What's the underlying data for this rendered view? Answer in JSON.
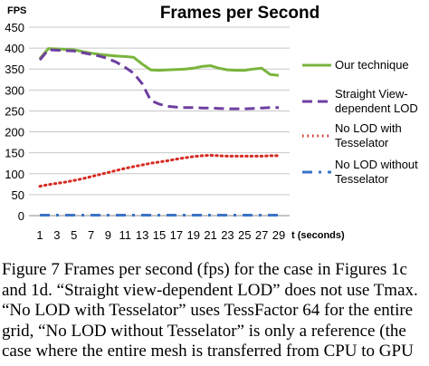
{
  "chart_data": {
    "type": "line",
    "title": "Frames per Second",
    "ylabel": "FPS",
    "xlabel": "t (seconds)",
    "ylim": [
      0,
      450
    ],
    "yticks": [
      0,
      50,
      100,
      150,
      200,
      250,
      300,
      350,
      400,
      450
    ],
    "xlim": [
      1,
      29
    ],
    "xticks": [
      1,
      3,
      5,
      7,
      9,
      11,
      13,
      15,
      17,
      19,
      21,
      23,
      25,
      27,
      29
    ],
    "grid": "horizontal",
    "legend_position": "right",
    "x": [
      1,
      2,
      3,
      4,
      5,
      6,
      7,
      8,
      9,
      10,
      11,
      12,
      13,
      14,
      15,
      16,
      17,
      18,
      19,
      20,
      21,
      22,
      23,
      24,
      25,
      26,
      27,
      28,
      29
    ],
    "series": [
      {
        "name": "Our technique",
        "color": "#79b43c",
        "style": "solid",
        "values": [
          375,
          399,
          398,
          397,
          396,
          392,
          388,
          385,
          383,
          381,
          380,
          378,
          362,
          348,
          347,
          348,
          349,
          350,
          352,
          356,
          358,
          352,
          348,
          347,
          347,
          350,
          352,
          337,
          335
        ]
      },
      {
        "name": "Straight View-dependent LOD",
        "color": "#6d3fa0",
        "style": "dash",
        "values": [
          372,
          396,
          395,
          394,
          393,
          389,
          385,
          381,
          375,
          366,
          354,
          340,
          315,
          275,
          266,
          261,
          259,
          258,
          258,
          257,
          257,
          256,
          255,
          255,
          255,
          256,
          257,
          258,
          258
        ]
      },
      {
        "name": "No LOD with Tesselator",
        "color": "#d62a22",
        "style": "dot",
        "values": [
          70,
          74,
          77,
          80,
          84,
          88,
          93,
          98,
          103,
          108,
          113,
          117,
          121,
          125,
          128,
          131,
          135,
          138,
          141,
          143,
          144,
          143,
          142,
          142,
          142,
          142,
          142,
          143,
          143
        ]
      },
      {
        "name": "No LOD without Tesselator",
        "color": "#3b73c8",
        "style": "dashdot",
        "values": [
          1,
          1,
          1,
          1,
          1,
          1,
          1,
          1,
          1,
          1,
          1,
          1,
          1,
          1,
          1,
          1,
          1,
          1,
          1,
          1,
          1,
          1,
          1,
          1,
          1,
          1,
          1,
          1,
          1
        ]
      }
    ]
  },
  "legend_lines": [
    [
      "Our technique"
    ],
    [
      "Straight View-",
      "dependent LOD"
    ],
    [
      "No LOD with",
      "Tesselator"
    ],
    [
      "No LOD without",
      "Tesselator"
    ]
  ],
  "caption": {
    "line1": "Figure 7 Frames per second (fps) for the case in Figures 1c",
    "line2": "and 1d. “Straight view-dependent LOD” does not use Tmax.",
    "line3": "“No LOD with Tesselator” uses TessFactor 64 for the entire",
    "line4": "grid, “No LOD without Tesselator” is only a reference (the",
    "line5": "case where the entire mesh is transferred from CPU to GPU"
  }
}
